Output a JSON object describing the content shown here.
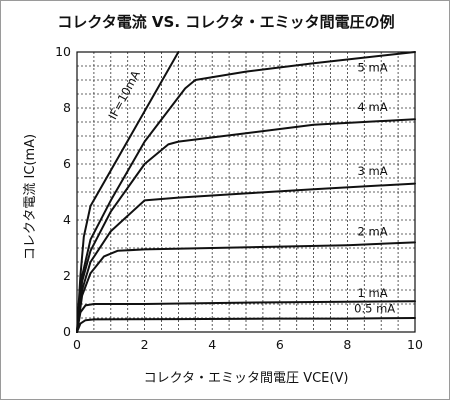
{
  "chart_data": {
    "type": "line",
    "title": "コレクタ電流 VS. コレクタ・エミッタ間電圧の例",
    "xlabel": "コレクタ・エミッタ間電圧 VCE(V)",
    "ylabel": "コレクタ電流 IC(mA)",
    "xlim": [
      0,
      10
    ],
    "ylim": [
      0,
      10
    ],
    "xticks": [
      0,
      2,
      4,
      6,
      8,
      10
    ],
    "yticks": [
      0,
      2,
      4,
      6,
      8,
      10
    ],
    "grid": true,
    "series": [
      {
        "name": "IF=10mA",
        "x": [
          0,
          0.1,
          0.2,
          0.4,
          3.0
        ],
        "y": [
          0,
          2.0,
          3.4,
          4.5,
          10.0
        ]
      },
      {
        "name": "5 mA",
        "x": [
          0,
          0.15,
          0.4,
          1.0,
          2.0,
          3.2,
          3.5,
          5,
          7,
          10
        ],
        "y": [
          0,
          2.0,
          3.3,
          4.7,
          6.8,
          8.7,
          9.0,
          9.3,
          9.6,
          10.0
        ]
      },
      {
        "name": "4 mA",
        "x": [
          0,
          0.15,
          0.4,
          1.0,
          2.0,
          2.7,
          3.0,
          5,
          7,
          10
        ],
        "y": [
          0,
          1.8,
          2.9,
          4.3,
          6.0,
          6.7,
          6.8,
          7.1,
          7.4,
          7.6
        ]
      },
      {
        "name": "3 mA",
        "x": [
          0,
          0.15,
          0.4,
          1.0,
          2.0,
          3,
          5,
          7,
          10
        ],
        "y": [
          0,
          1.5,
          2.5,
          3.6,
          4.7,
          4.8,
          4.95,
          5.1,
          5.3
        ]
      },
      {
        "name": "2 mA",
        "x": [
          0,
          0.15,
          0.4,
          0.8,
          1.2,
          2,
          4,
          6,
          8,
          10
        ],
        "y": [
          0,
          1.3,
          2.1,
          2.7,
          2.9,
          2.95,
          3.0,
          3.05,
          3.1,
          3.2
        ]
      },
      {
        "name": "1 mA",
        "x": [
          0,
          0.1,
          0.25,
          0.5,
          2,
          5,
          8,
          10
        ],
        "y": [
          0,
          0.7,
          0.95,
          1.0,
          1.0,
          1.05,
          1.08,
          1.1
        ]
      },
      {
        "name": "0.5 mA",
        "x": [
          0,
          0.1,
          0.25,
          0.5,
          3,
          6,
          8,
          10
        ],
        "y": [
          0,
          0.3,
          0.42,
          0.45,
          0.46,
          0.48,
          0.48,
          0.5
        ]
      }
    ],
    "series_labels": {
      "5 mA": [
        8.3,
        9.3
      ],
      "4 mA": [
        8.3,
        7.9
      ],
      "3 mA": [
        8.3,
        5.6
      ],
      "2 mA": [
        8.3,
        3.45
      ],
      "1 mA": [
        8.3,
        1.25
      ],
      "0.5 mA": [
        8.2,
        0.7
      ],
      "IF=10mA": [
        1.5,
        8.4
      ]
    }
  }
}
